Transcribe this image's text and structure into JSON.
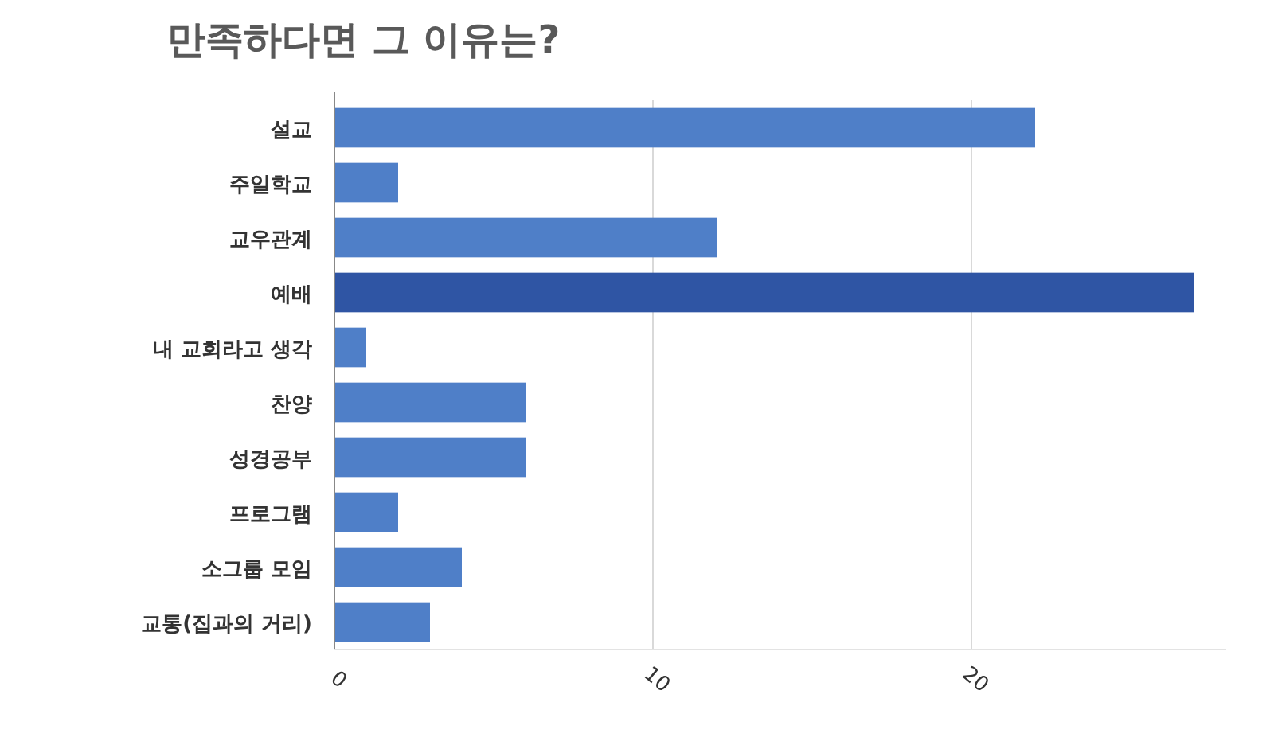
{
  "chart_data": {
    "type": "bar",
    "orientation": "horizontal",
    "title": "만족하다면 그 이유는?",
    "categories": [
      "설교",
      "주일학교",
      "교우관계",
      "예배",
      "내 교회라고 생각",
      "찬양",
      "성경공부",
      "프로그램",
      "소그룹 모임",
      "교통(집과의 거리)"
    ],
    "values": [
      22,
      2,
      12,
      27,
      1,
      6,
      6,
      2,
      4,
      3
    ],
    "colors": [
      "#4f7fc8",
      "#4f7fc8",
      "#4f7fc8",
      "#2f55a4",
      "#4f7fc8",
      "#4f7fc8",
      "#4f7fc8",
      "#4f7fc8",
      "#4f7fc8",
      "#4f7fc8"
    ],
    "xlim": [
      0,
      28
    ],
    "xticks": [
      0,
      10,
      20
    ],
    "grid": "x"
  }
}
